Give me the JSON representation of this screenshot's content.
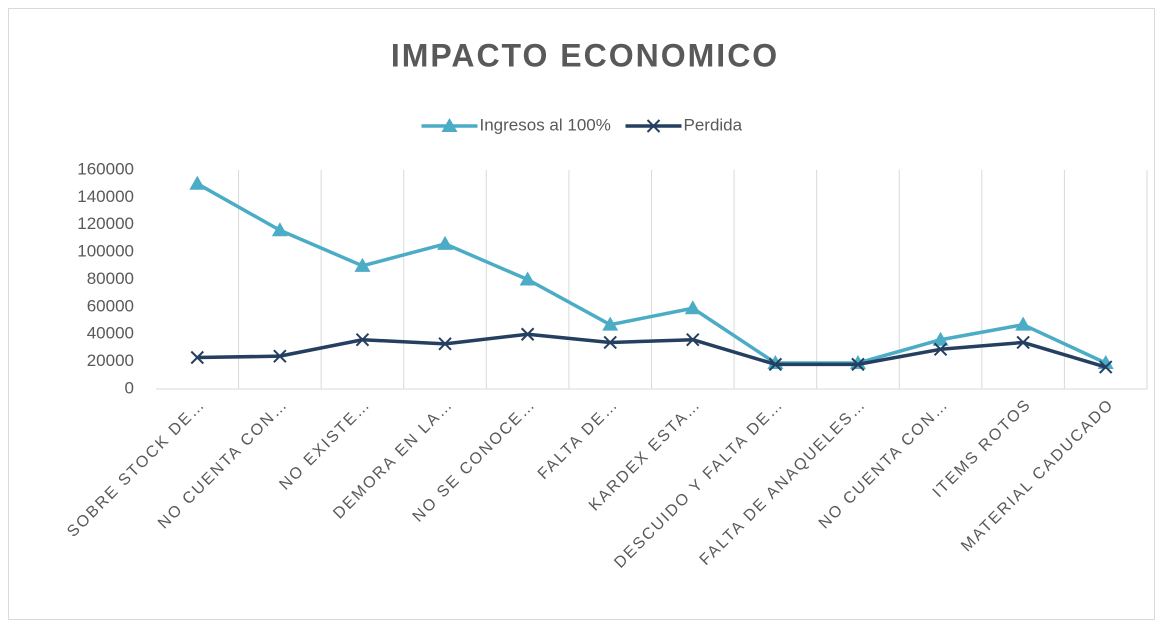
{
  "chart_data": {
    "type": "line",
    "title": "IMPACTO ECONOMICO",
    "categories": [
      "SOBRE STOCK DE…",
      "NO CUENTA CON…",
      "NO EXISTE…",
      "DEMORA EN LA…",
      "NO SE CONOCE…",
      "FALTA DE…",
      "KARDEX ESTA…",
      "DESCUIDO Y FALTA DE…",
      "FALTA DE ANAQUELES…",
      "NO CUENTA CON…",
      "ITEMS ROTOS",
      "MATERIAL CADUCADO"
    ],
    "series": [
      {
        "name": "Ingresos al 100%",
        "color": "#4bacc6",
        "marker": "triangle",
        "values": [
          150000,
          116000,
          90000,
          106000,
          80000,
          47000,
          59000,
          19000,
          19000,
          36000,
          47000,
          19000
        ]
      },
      {
        "name": "Perdida",
        "color": "#243f60",
        "marker": "x",
        "values": [
          23000,
          24000,
          36000,
          33000,
          40000,
          34000,
          36000,
          18000,
          18000,
          29000,
          34000,
          16000
        ]
      }
    ],
    "ylim": [
      0,
      160000
    ],
    "yticks": [
      0,
      20000,
      40000,
      60000,
      80000,
      100000,
      120000,
      140000,
      160000
    ],
    "legend": "top",
    "grid": "vertical"
  }
}
